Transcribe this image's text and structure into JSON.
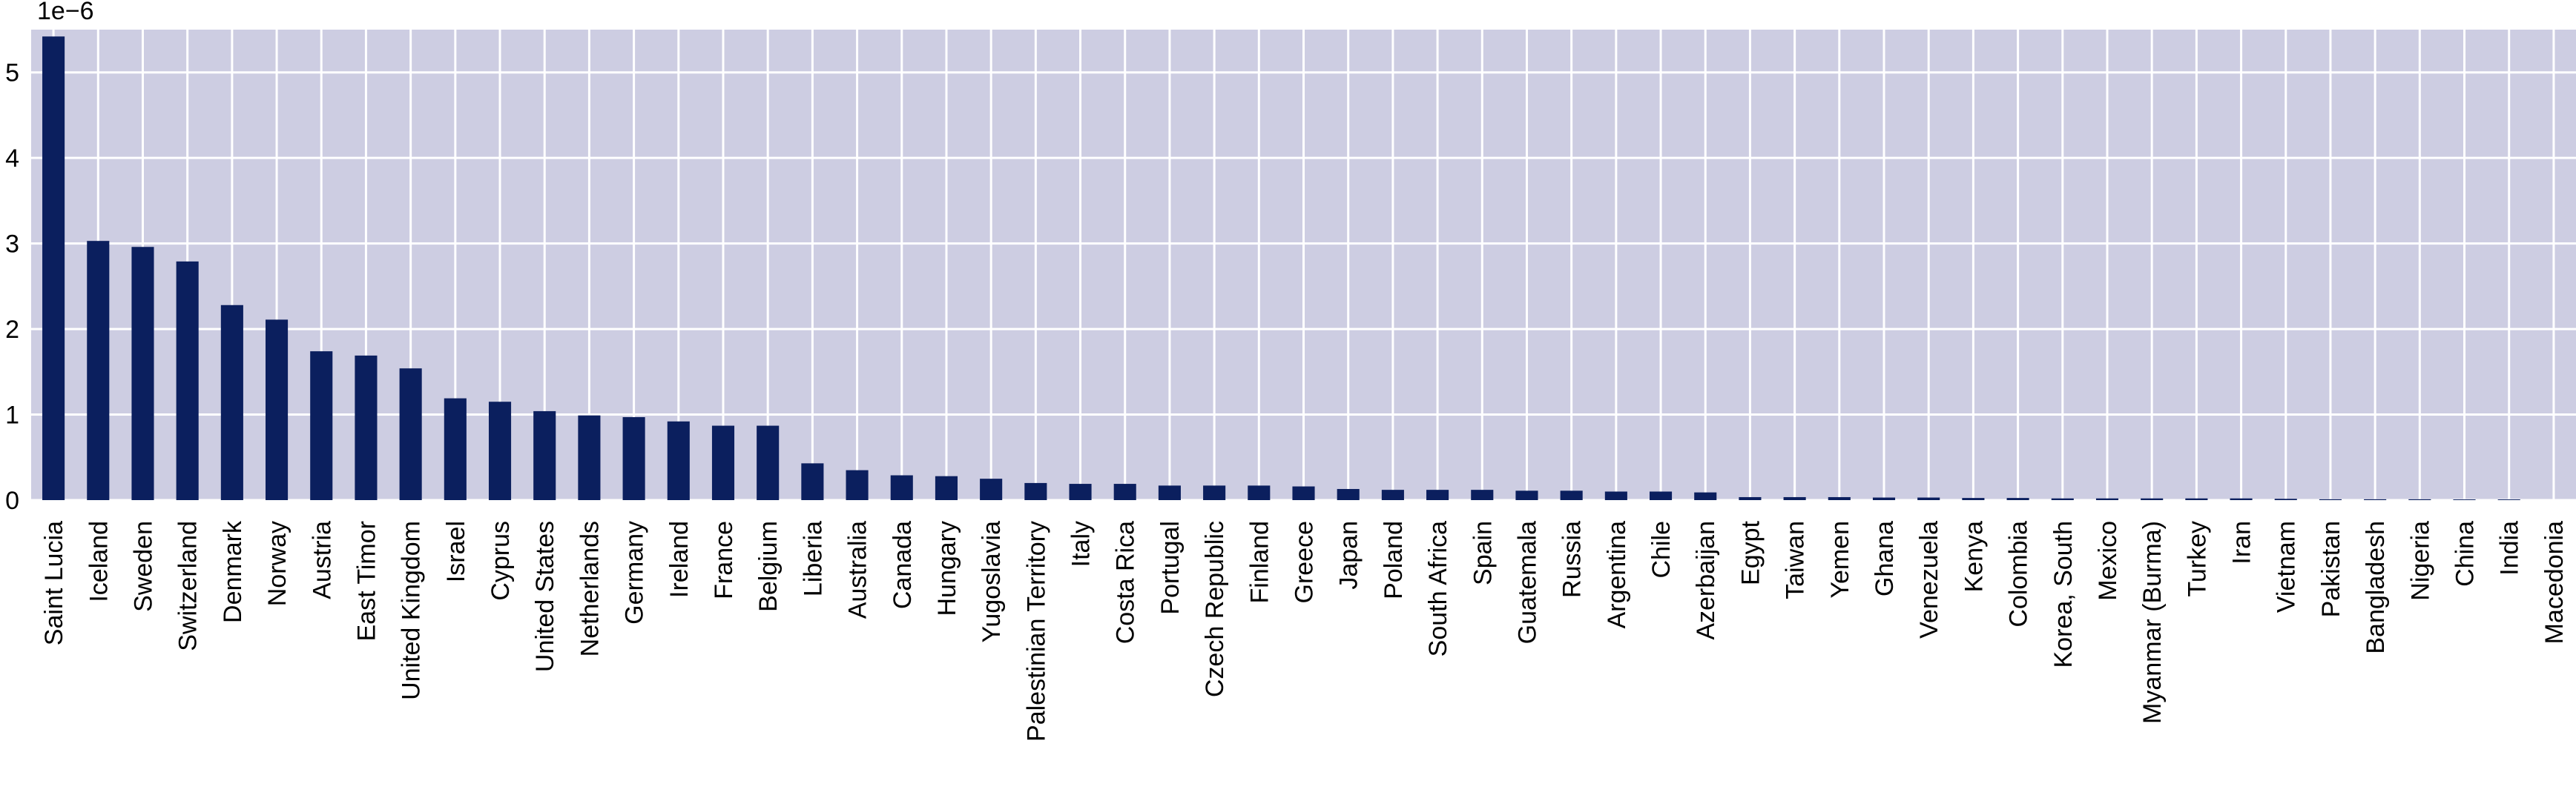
{
  "chart_data": {
    "type": "bar",
    "title": "",
    "xlabel": "",
    "ylabel": "",
    "scale_label": "1e−6",
    "ylim": [
      0,
      5.5
    ],
    "yticks": [
      0,
      1,
      2,
      3,
      4,
      5
    ],
    "grid": true,
    "legend": "none",
    "colors": {
      "bar": "#0b1f5e",
      "plot_background": "#cdcde2",
      "grid": "#ffffff"
    },
    "categories": [
      "Saint Lucia",
      "Iceland",
      "Sweden",
      "Switzerland",
      "Denmark",
      "Norway",
      "Austria",
      "East Timor",
      "United Kingdom",
      "Israel",
      "Cyprus",
      "United States",
      "Netherlands",
      "Germany",
      "Ireland",
      "France",
      "Belgium",
      "Liberia",
      "Australia",
      "Canada",
      "Hungary",
      "Yugoslavia",
      "Palestinian Territory",
      "Italy",
      "Costa Rica",
      "Portugal",
      "Czech Republic",
      "Finland",
      "Greece",
      "Japan",
      "Poland",
      "South Africa",
      "Spain",
      "Guatemala",
      "Russia",
      "Argentina",
      "Chile",
      "Azerbaijan",
      "Egypt",
      "Taiwan",
      "Yemen",
      "Ghana",
      "Venezuela",
      "Kenya",
      "Colombia",
      "Korea, South",
      "Mexico",
      "Myanmar (Burma)",
      "Turkey",
      "Iran",
      "Vietnam",
      "Pakistan",
      "Bangladesh",
      "Nigeria",
      "China",
      "India",
      "Macedonia"
    ],
    "values": [
      5.42,
      3.03,
      2.96,
      2.79,
      2.28,
      2.11,
      1.74,
      1.69,
      1.54,
      1.19,
      1.15,
      1.04,
      0.99,
      0.97,
      0.92,
      0.87,
      0.87,
      0.43,
      0.35,
      0.29,
      0.28,
      0.25,
      0.2,
      0.19,
      0.19,
      0.17,
      0.17,
      0.17,
      0.16,
      0.13,
      0.12,
      0.12,
      0.12,
      0.11,
      0.11,
      0.1,
      0.1,
      0.09,
      0.035,
      0.035,
      0.035,
      0.03,
      0.03,
      0.025,
      0.025,
      0.02,
      0.02,
      0.02,
      0.02,
      0.02,
      0.015,
      0.01,
      0.01,
      0.01,
      0.008,
      0.008,
      0.0
    ]
  }
}
